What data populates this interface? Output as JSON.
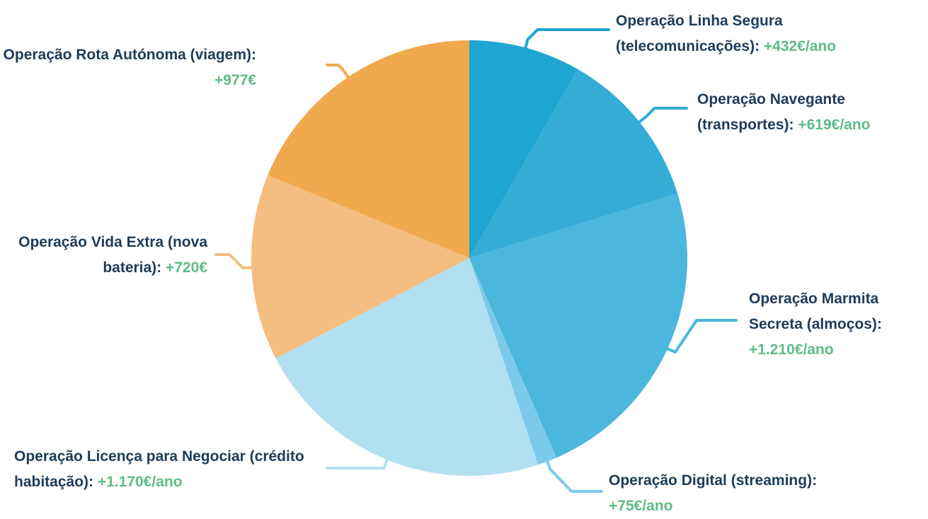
{
  "chart_data": {
    "type": "pie",
    "categories": [
      "Operação Linha Segura (telecomunicações):",
      "Operação Navegante (transportes):",
      "Operação Marmita Secreta (almoços):",
      "Operação Digital (streaming):",
      "Operação Licença para Negociar (crédito habitação):",
      "Operação Vida Extra (nova bateria):",
      "Operação Rota Autónoma (viagem):"
    ],
    "values": [
      432,
      619,
      1210,
      75,
      1170,
      720,
      977
    ],
    "value_labels": [
      "+432€/ano",
      "+619€/ano",
      "+1.210€/ano",
      "+75€/ano",
      "+1.170€/ano",
      "+720€",
      "+977€"
    ],
    "colors": [
      "#1ea5d2",
      "#35acd6",
      "#4bb7dc",
      "#7ccaea",
      "#b3e0f0",
      "#f3be80",
      "#f0a94c"
    ]
  }
}
